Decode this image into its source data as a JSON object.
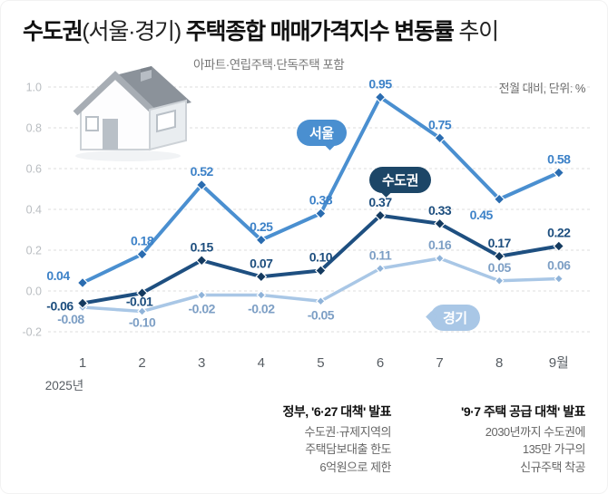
{
  "title": {
    "part1": "수도권",
    "part2": "(서울·경기) ",
    "part3": "주택종합 매매가격지수 변동률",
    "part4": " 추이"
  },
  "subtitle": "아파트·연립주택·단독주택 포함",
  "unit_note": "전월 대비, 단위: %",
  "chart_data": {
    "type": "line",
    "x_labels": [
      "1",
      "2",
      "3",
      "4",
      "5",
      "6",
      "7",
      "8",
      "9월"
    ],
    "x_sub_label": "2025년",
    "ylim": [
      -0.2,
      1.0
    ],
    "yticks": [
      1.0,
      0.8,
      0.6,
      0.4,
      0.2,
      0.0,
      -0.2
    ],
    "grid": "dashed-horizontal",
    "legend_position": "inline-badges",
    "series": [
      {
        "name": "서울",
        "color": "#4a8fd0",
        "marker_color": "#2a6cb0",
        "label_color": "#3d82c8",
        "values": [
          0.04,
          0.18,
          0.52,
          0.25,
          0.38,
          0.95,
          0.75,
          0.45,
          0.58
        ]
      },
      {
        "name": "수도권",
        "color": "#1e4f80",
        "marker_color": "#143a5f",
        "label_color": "#1d4e7e",
        "values": [
          -0.06,
          -0.01,
          0.15,
          0.07,
          0.1,
          0.37,
          0.33,
          0.17,
          0.22
        ]
      },
      {
        "name": "경기",
        "color": "#a9c7e6",
        "marker_color": "#8fb3d9",
        "label_color": "#7d9fc5",
        "values": [
          -0.08,
          -0.1,
          -0.02,
          -0.02,
          -0.05,
          0.11,
          0.16,
          0.05,
          0.06
        ]
      }
    ]
  },
  "annotations": [
    {
      "title": "정부, '6·27 대책' 발표",
      "lines": [
        "수도권·규제지역의",
        "주택담보대출 한도",
        "6억원으로 제한"
      ]
    },
    {
      "title": "'9·7 주택 공급 대책' 발표",
      "lines": [
        "2030년까지 수도권에",
        "135만 가구의",
        "신규주택 착공"
      ]
    }
  ]
}
